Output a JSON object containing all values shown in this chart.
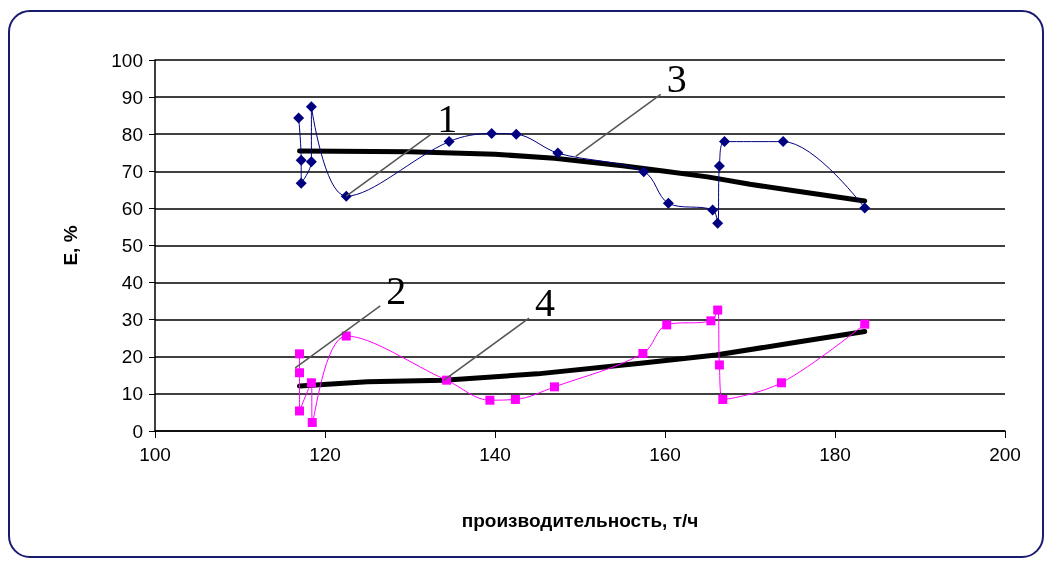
{
  "chart_data": {
    "type": "line",
    "xlabel": "производительность, т/ч",
    "ylabel": "E, %",
    "xlim": [
      100,
      200
    ],
    "xticks": [
      100,
      120,
      140,
      160,
      180,
      200
    ],
    "ylim": [
      0,
      100
    ],
    "yticks": [
      0,
      10,
      20,
      30,
      40,
      50,
      60,
      70,
      80,
      90,
      100
    ],
    "grid": "y",
    "series": [
      {
        "color": "#000080",
        "marker": "diamond",
        "x": [
          116.9,
          117.2,
          117.2,
          118.4,
          118.4,
          122.5,
          134.6,
          139.6,
          142.5,
          147.4,
          157.5,
          160.4,
          165.6,
          166.2,
          166.4,
          167,
          173.9,
          183.5
        ],
        "values": [
          84.4,
          73,
          66.8,
          72.6,
          87.4,
          63.3,
          78,
          80.2,
          80,
          74.9,
          69.9,
          61.4,
          59.6,
          56,
          71.4,
          78,
          78,
          60.1
        ]
      },
      {
        "color": "#ff00ff",
        "marker": "square",
        "x": [
          117,
          117,
          117,
          118.4,
          118.5,
          122.5,
          134.3,
          139.4,
          142.4,
          147,
          157.4,
          160.2,
          165.4,
          166.2,
          166.4,
          166.8,
          173.7,
          183.5
        ],
        "values": [
          20.8,
          15.7,
          5.4,
          13,
          2.3,
          25.6,
          13.7,
          8.3,
          8.5,
          11.9,
          20.9,
          28.6,
          29.7,
          32.6,
          17.8,
          8.5,
          13,
          28.8
        ]
      },
      {
        "color": "#000000",
        "marker": "none",
        "x": [
          117,
          130,
          140,
          147,
          155,
          160,
          165,
          170,
          175,
          183.5
        ],
        "values": [
          75.5,
          75.3,
          74.6,
          73.5,
          71.5,
          70,
          68.5,
          66.5,
          64.8,
          62
        ]
      },
      {
        "color": "#000000",
        "marker": "none",
        "x": [
          117,
          125,
          134,
          145,
          157.4,
          166,
          176,
          183.5
        ],
        "values": [
          12.1,
          13.3,
          13.7,
          15.4,
          18.3,
          20.5,
          24.1,
          26.8
        ]
      }
    ],
    "annotations": [
      {
        "text": "1",
        "x": 122.5,
        "y": 63.3
      },
      {
        "text": "3",
        "x": 149.5,
        "y": 74
      },
      {
        "text": "2",
        "x": 116.5,
        "y": 17
      },
      {
        "text": "4",
        "x": 134,
        "y": 13.7
      }
    ]
  }
}
